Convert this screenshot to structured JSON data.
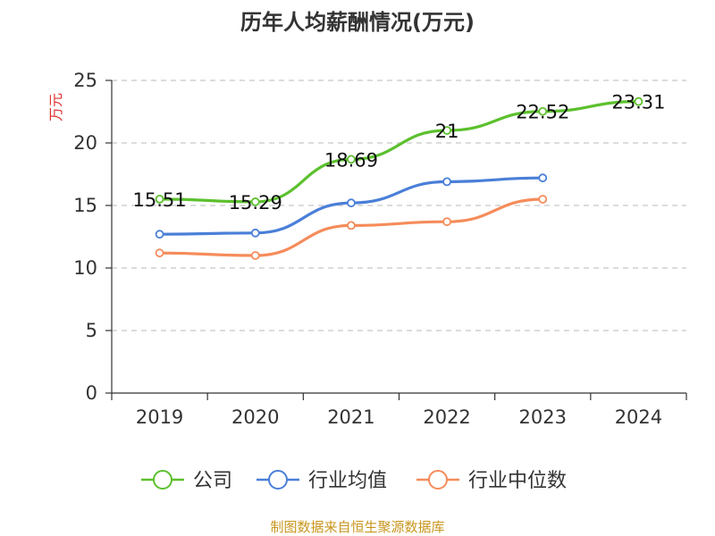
{
  "chart_data": {
    "type": "line",
    "title": "历年人均薪酬情况(万元)",
    "ylabel": "万元",
    "xlabel": "",
    "categories": [
      "2019",
      "2020",
      "2021",
      "2022",
      "2023",
      "2024"
    ],
    "ylim": [
      0,
      25
    ],
    "yticks": [
      0,
      5,
      10,
      15,
      20,
      25
    ],
    "grid": "horizontal-dashed",
    "legend_position": "bottom",
    "series": [
      {
        "name": "公司",
        "color": "#5cc02e",
        "values": [
          15.51,
          15.29,
          18.69,
          21,
          22.52,
          23.31
        ],
        "labels": [
          "15.51",
          "15.29",
          "18.69",
          "21",
          "22.52",
          "23.31"
        ]
      },
      {
        "name": "行业均值",
        "color": "#4a7fd8",
        "values": [
          12.7,
          12.8,
          15.2,
          16.9,
          17.2,
          null
        ]
      },
      {
        "name": "行业中位数",
        "color": "#f58c5a",
        "values": [
          11.2,
          11.0,
          13.4,
          13.7,
          15.5,
          null
        ]
      }
    ],
    "source": "制图数据来自恒生聚源数据库"
  }
}
